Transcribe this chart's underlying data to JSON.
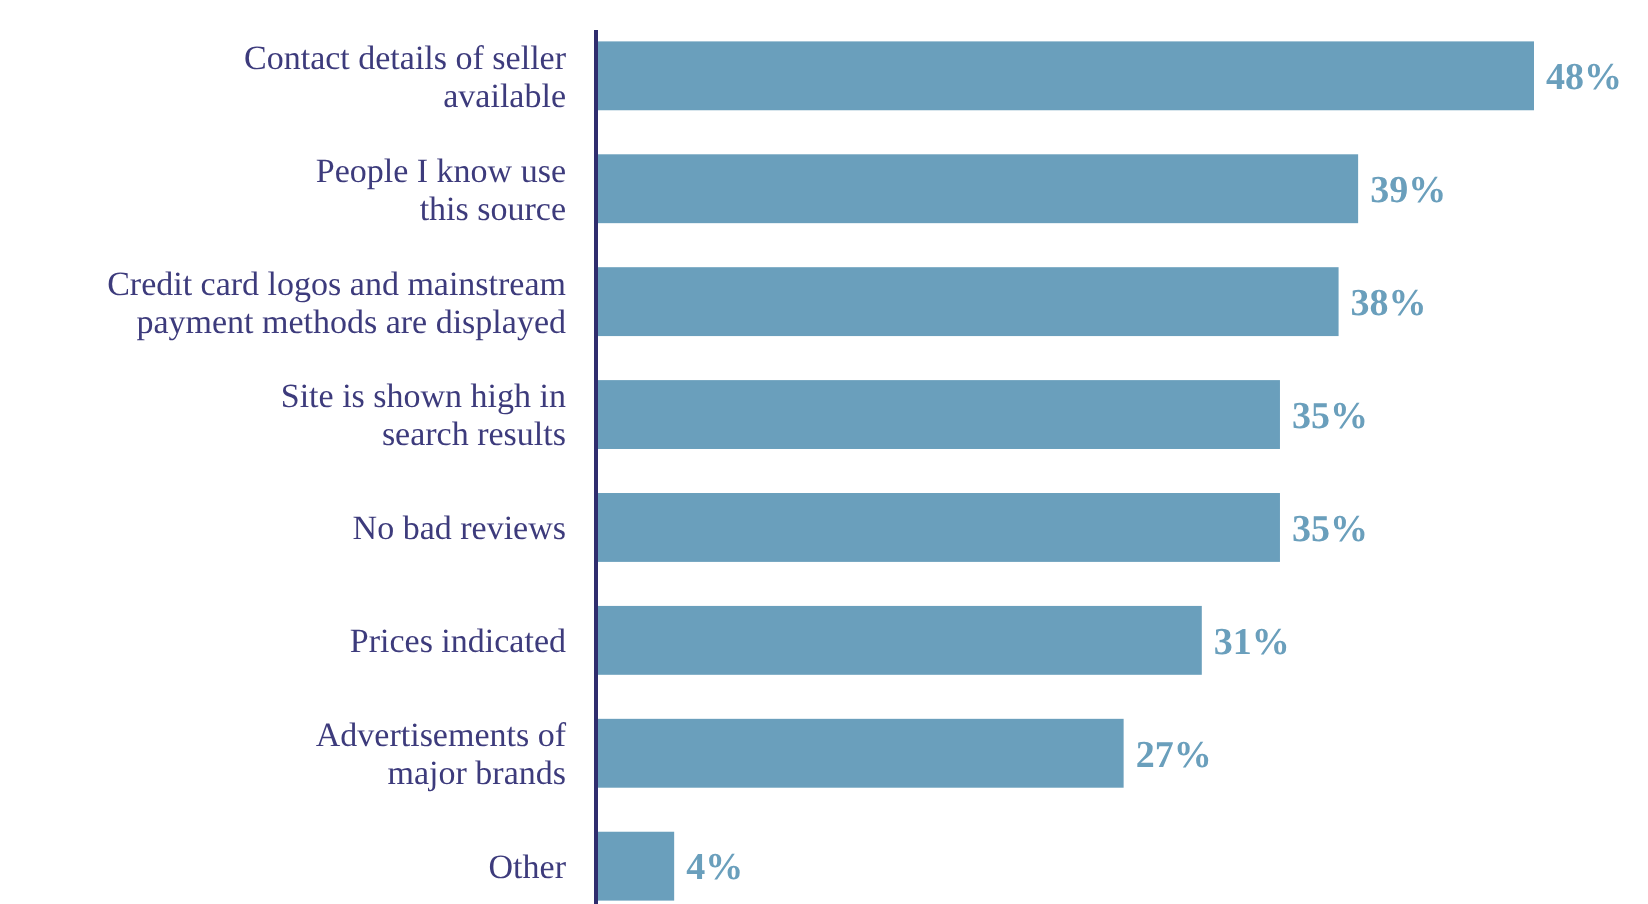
{
  "chart_data": {
    "type": "bar",
    "orientation": "horizontal",
    "categories": [
      "Contact details of seller\navailable",
      "People I know use\nthis source",
      "Credit card logos and mainstream\npayment methods are displayed",
      "Site is shown high in\nsearch results",
      "No bad reviews",
      "Prices indicated",
      "Advertisements of\nmajor brands",
      "Other"
    ],
    "values": [
      48,
      39,
      38,
      35,
      35,
      31,
      27,
      4
    ],
    "value_labels": [
      "48%",
      "39%",
      "38%",
      "35%",
      "35%",
      "31%",
      "27%",
      "4%"
    ],
    "color": "#6a9fbc",
    "tick_labels": "y"
  }
}
